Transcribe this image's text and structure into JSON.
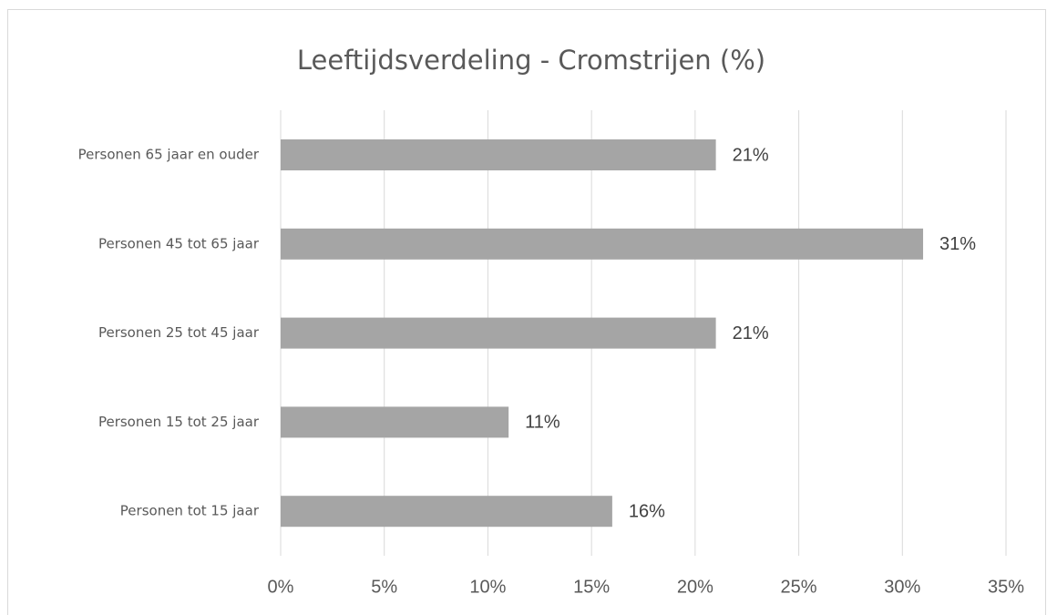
{
  "chart_data": {
    "type": "bar",
    "orientation": "horizontal",
    "title": "Leeftijdsverdeling - Cromstrijen (%)",
    "categories": [
      "Personen 65 jaar en ouder",
      "Personen 45 tot 65 jaar",
      "Personen 25 tot 45 jaar",
      "Personen 15 tot 25 jaar",
      "Personen tot 15 jaar"
    ],
    "values": [
      21,
      31,
      21,
      11,
      16
    ],
    "value_labels": [
      "21%",
      "31%",
      "21%",
      "11%",
      "16%"
    ],
    "color": "#a5a5a5",
    "xlim": [
      0,
      35
    ],
    "xticks": [
      {
        "value": 0,
        "label": "0%"
      },
      {
        "value": 5,
        "label": "5%"
      },
      {
        "value": 10,
        "label": "10%"
      },
      {
        "value": 15,
        "label": "15%"
      },
      {
        "value": 20,
        "label": "20%"
      },
      {
        "value": 25,
        "label": "25%"
      },
      {
        "value": 30,
        "label": "30%"
      },
      {
        "value": 35,
        "label": "35%"
      }
    ],
    "grid": true
  }
}
